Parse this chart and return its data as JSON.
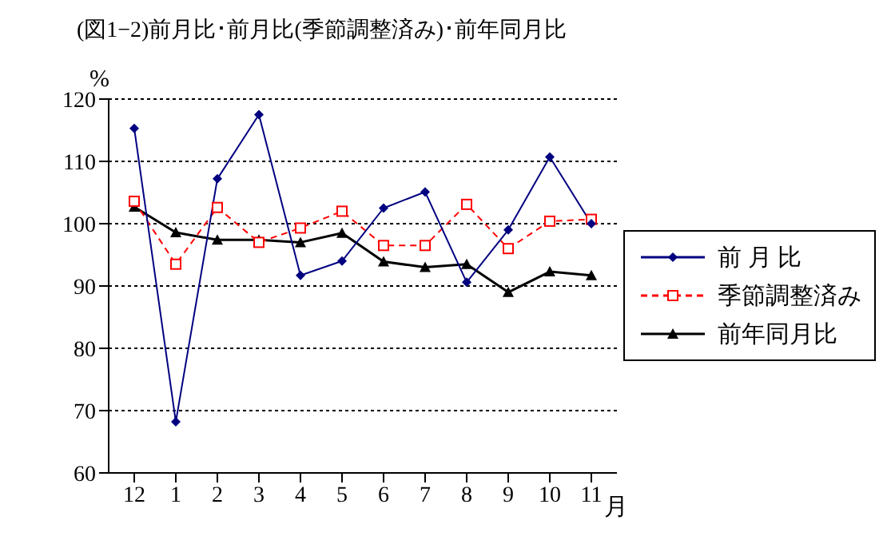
{
  "chart_data": {
    "type": "line",
    "title": "(図1−2)前月比･前月比(季節調整済み)･前年同月比",
    "ylabel": "%",
    "xlabel": "月",
    "categories": [
      "12",
      "1",
      "2",
      "3",
      "4",
      "5",
      "6",
      "7",
      "8",
      "9",
      "10",
      "11"
    ],
    "series": [
      {
        "name": "前 月 比",
        "color": "#000080",
        "marker": "diamond",
        "line_style": "solid",
        "values": [
          115.3,
          68.2,
          107.2,
          117.5,
          91.7,
          94.0,
          102.5,
          105.1,
          90.6,
          99.0,
          110.7,
          100.0
        ]
      },
      {
        "name": "季節調整済み",
        "color": "#ff0000",
        "marker": "square",
        "line_style": "dashed",
        "values": [
          103.6,
          93.5,
          102.6,
          97.0,
          99.3,
          102.0,
          96.5,
          96.5,
          103.1,
          96.0,
          100.4,
          100.7
        ]
      },
      {
        "name": "前年同月比",
        "color": "#000000",
        "marker": "triangle",
        "line_style": "solid",
        "values": [
          102.7,
          98.6,
          97.4,
          97.4,
          97.0,
          98.5,
          93.9,
          93.0,
          93.5,
          89.0,
          92.3,
          91.7
        ]
      }
    ],
    "ylim": [
      60,
      120
    ],
    "yticks": [
      60,
      70,
      80,
      90,
      100,
      110,
      120
    ],
    "grid": "y",
    "legend": "right"
  }
}
